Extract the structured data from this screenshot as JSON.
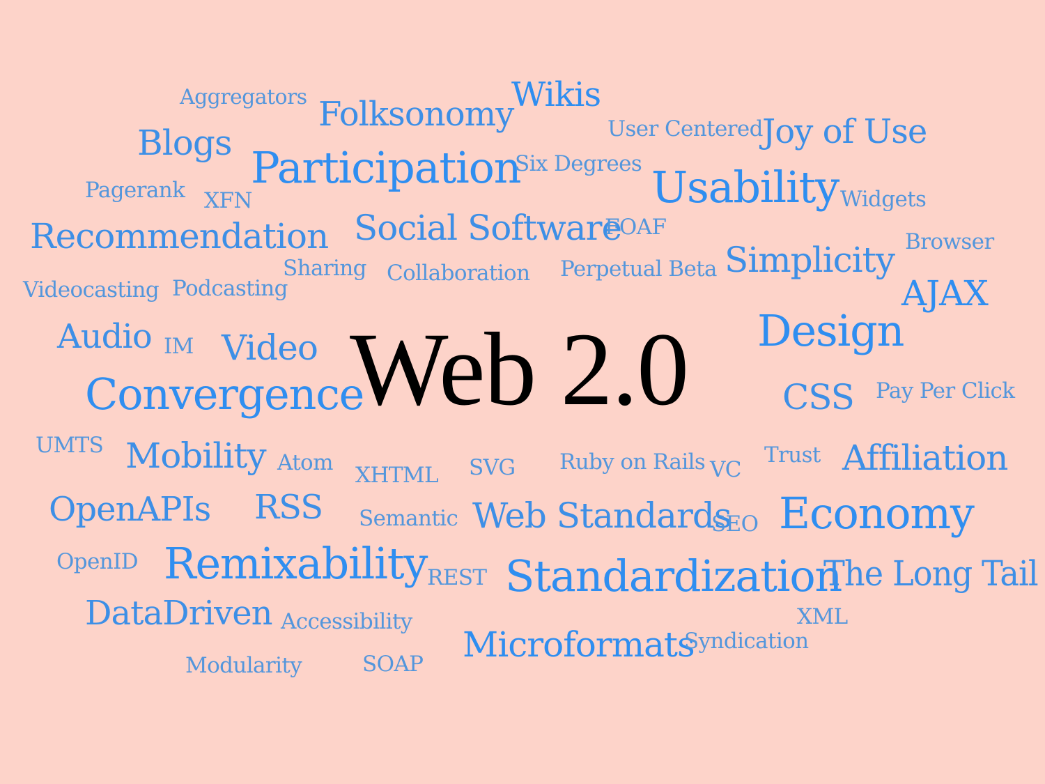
{
  "title": "Web 2.0",
  "colors": {
    "background": "#fdd3c9",
    "word": "#3d8fe6",
    "title": "#000000"
  },
  "words": [
    "Aggregators",
    "Folksonomy",
    "Wikis",
    "User Centered",
    "Joy of Use",
    "Blogs",
    "Participation",
    "Six Degrees",
    "Usability",
    "Widgets",
    "Pagerank",
    "XFN",
    "Recommendation",
    "Social Software",
    "FOAF",
    "Browser",
    "Sharing",
    "Collaboration",
    "Perpetual Beta",
    "Simplicity",
    "Videocasting",
    "Podcasting",
    "AJAX",
    "Audio",
    "IM",
    "Video",
    "Design",
    "Convergence",
    "CSS",
    "Pay Per Click",
    "UMTS",
    "Mobility",
    "Atom",
    "XHTML",
    "SVG",
    "Ruby on Rails",
    "VC",
    "Trust",
    "Affiliation",
    "OpenAPIs",
    "RSS",
    "Semantic",
    "Web Standards",
    "SEO",
    "Economy",
    "OpenID",
    "Remixability",
    "REST",
    "Standardization",
    "The Long Tail",
    "DataDriven",
    "Accessibility",
    "XML",
    "Microformats",
    "Syndication",
    "Modularity",
    "SOAP"
  ]
}
